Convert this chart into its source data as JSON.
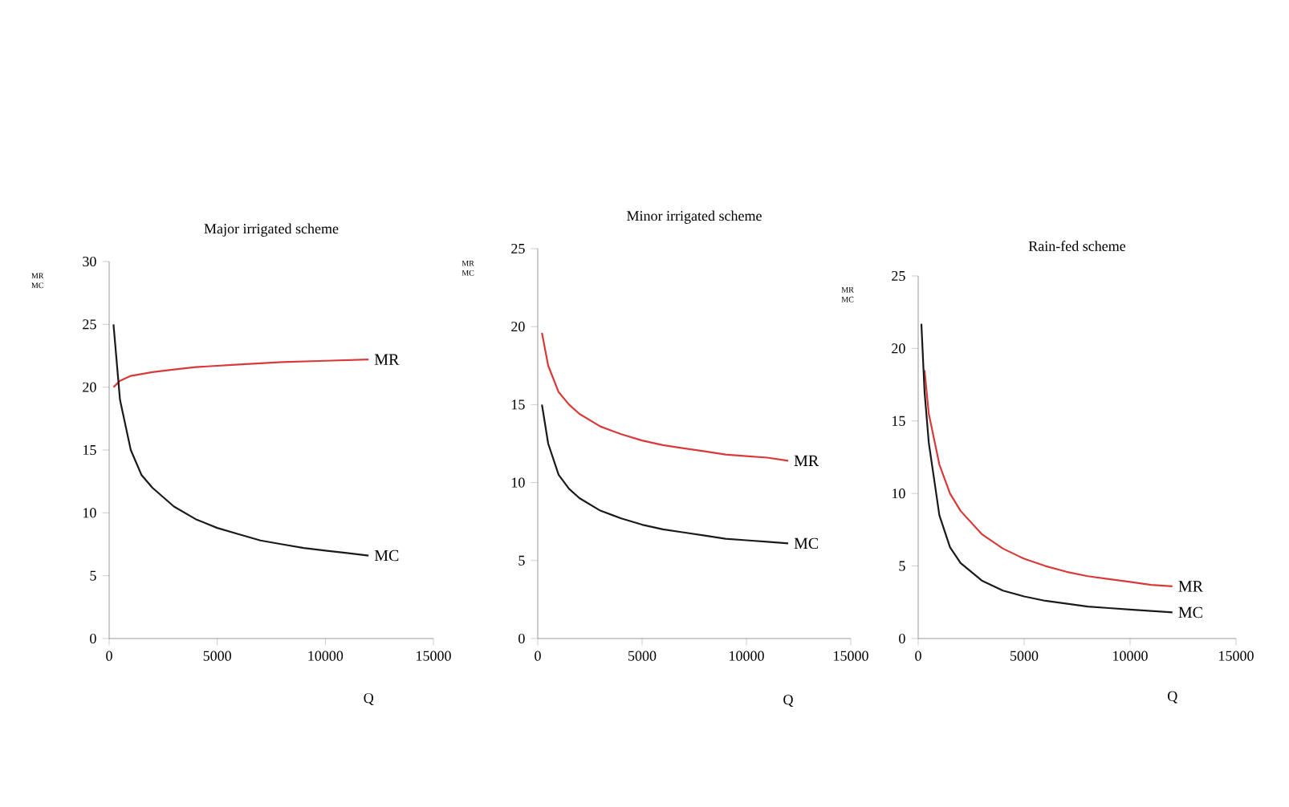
{
  "chart_data": [
    {
      "type": "line",
      "title": "Major   irrigated scheme",
      "xlabel": "Q",
      "ylabel": "MR MC",
      "xlim": [
        0,
        15000
      ],
      "xticks": [
        0,
        5000,
        10000,
        15000
      ],
      "ylim": [
        0,
        30
      ],
      "yticks": [
        0,
        5,
        10,
        15,
        20,
        25,
        30
      ],
      "grid": false,
      "legend": false,
      "marker": "none",
      "line_style": "solid",
      "series": [
        {
          "name": "MR",
          "color": "#d83a3a",
          "x": [
            200,
            500,
            1000,
            2000,
            3000,
            4000,
            5000,
            6000,
            8000,
            10000,
            12000
          ],
          "values": [
            20,
            20.5,
            20.9,
            21.2,
            21.4,
            21.6,
            21.7,
            21.8,
            22.0,
            22.1,
            22.2
          ]
        },
        {
          "name": "MC",
          "color": "#1a1a1a",
          "x": [
            200,
            500,
            1000,
            1500,
            2000,
            3000,
            4000,
            5000,
            6000,
            7000,
            8000,
            9000,
            10000,
            11000,
            12000
          ],
          "values": [
            25,
            19,
            15,
            13,
            12,
            10.5,
            9.5,
            8.8,
            8.3,
            7.8,
            7.5,
            7.2,
            7.0,
            6.8,
            6.6
          ]
        }
      ]
    },
    {
      "type": "line",
      "title": "Minor irrigated scheme",
      "xlabel": "Q",
      "ylabel": "MR MC",
      "xlim": [
        0,
        15000
      ],
      "xticks": [
        0,
        5000,
        10000,
        15000
      ],
      "ylim": [
        0,
        25
      ],
      "yticks": [
        0,
        5,
        10,
        15,
        20,
        25
      ],
      "grid": false,
      "legend": false,
      "marker": "none",
      "line_style": "solid",
      "series": [
        {
          "name": "MR",
          "color": "#d83a3a",
          "x": [
            200,
            500,
            1000,
            1500,
            2000,
            3000,
            4000,
            5000,
            6000,
            7000,
            8000,
            9000,
            10000,
            11000,
            12000
          ],
          "values": [
            19.6,
            17.5,
            15.8,
            15,
            14.4,
            13.6,
            13.1,
            12.7,
            12.4,
            12.2,
            12.0,
            11.8,
            11.7,
            11.6,
            11.4
          ]
        },
        {
          "name": "MC",
          "color": "#1a1a1a",
          "x": [
            200,
            500,
            1000,
            1500,
            2000,
            3000,
            4000,
            5000,
            6000,
            7000,
            8000,
            9000,
            10000,
            11000,
            12000
          ],
          "values": [
            15,
            12.5,
            10.5,
            9.6,
            9,
            8.2,
            7.7,
            7.3,
            7.0,
            6.8,
            6.6,
            6.4,
            6.3,
            6.2,
            6.1
          ]
        }
      ]
    },
    {
      "type": "line",
      "title": "Rain-fed scheme",
      "xlabel": "Q",
      "ylabel": "MR MC",
      "xlim": [
        0,
        15000
      ],
      "xticks": [
        0,
        5000,
        10000,
        15000
      ],
      "ylim": [
        0,
        25
      ],
      "yticks": [
        0,
        5,
        10,
        15,
        20,
        25
      ],
      "grid": false,
      "legend": false,
      "marker": "none",
      "line_style": "solid",
      "series": [
        {
          "name": "MR",
          "color": "#d83a3a",
          "x": [
            300,
            500,
            1000,
            1500,
            2000,
            3000,
            4000,
            5000,
            6000,
            7000,
            8000,
            9000,
            10000,
            11000,
            12000
          ],
          "values": [
            18.5,
            15.5,
            12,
            10,
            8.8,
            7.2,
            6.2,
            5.5,
            5.0,
            4.6,
            4.3,
            4.1,
            3.9,
            3.7,
            3.6
          ]
        },
        {
          "name": "MC",
          "color": "#1a1a1a",
          "x": [
            150,
            300,
            500,
            1000,
            1500,
            2000,
            3000,
            4000,
            5000,
            6000,
            7000,
            8000,
            9000,
            10000,
            12000
          ],
          "values": [
            21.7,
            17,
            13.5,
            8.5,
            6.3,
            5.2,
            4,
            3.3,
            2.9,
            2.6,
            2.4,
            2.2,
            2.1,
            2.0,
            1.8
          ]
        }
      ]
    }
  ]
}
